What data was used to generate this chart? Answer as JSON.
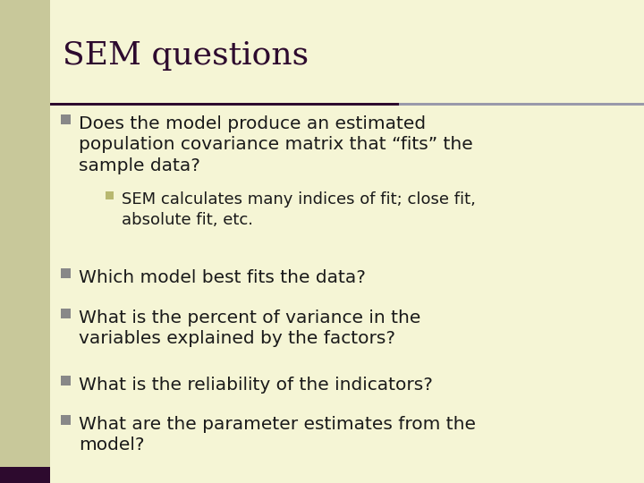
{
  "title": "SEM questions",
  "title_color": "#2d0a2e",
  "background_color": "#f5f5d5",
  "left_bar_color": "#c8c89a",
  "left_bar_bottom_accent": "#2d0a2e",
  "sep_line_left_color": "#2d0a2e",
  "sep_line_right_color": "#9999aa",
  "bullet_l1_color": "#888888",
  "bullet_l2_color": "#b8b870",
  "title_fontsize": 26,
  "body_fontsize": 14.5,
  "sub_fontsize": 13.0,
  "left_bar_width": 0.078,
  "bullet_items": [
    {
      "level": 1,
      "text": "Does the model produce an estimated\npopulation covariance matrix that “fits” the\nsample data?"
    },
    {
      "level": 2,
      "text": "SEM calculates many indices of fit; close fit,\nabsolute fit, etc."
    },
    {
      "level": 1,
      "text": "Which model best fits the data?"
    },
    {
      "level": 1,
      "text": "What is the percent of variance in the\nvariables explained by the factors?"
    },
    {
      "level": 1,
      "text": "What is the reliability of the indicators?"
    },
    {
      "level": 1,
      "text": "What are the parameter estimates from the\nmodel?"
    }
  ]
}
